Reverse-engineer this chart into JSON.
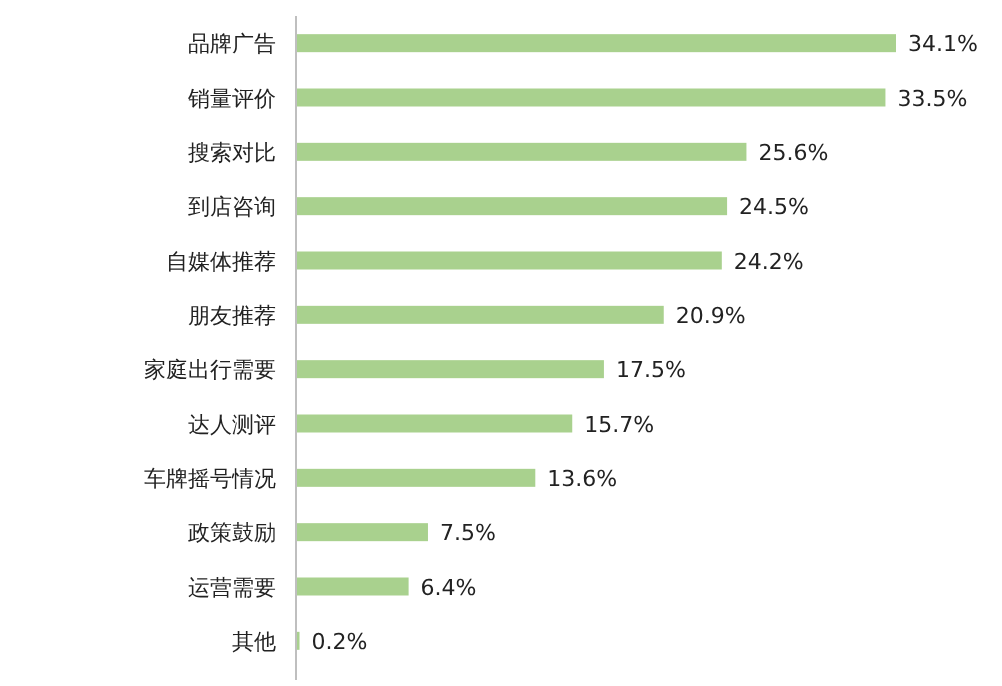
{
  "chart_data": {
    "type": "bar",
    "orientation": "horizontal",
    "categories": [
      "品牌广告",
      "销量评价",
      "搜索对比",
      "到店咨询",
      "自媒体推荐",
      "朋友推荐",
      "家庭出行需要",
      "达人测评",
      "车牌摇号情况",
      "政策鼓励",
      "运营需要",
      "其他"
    ],
    "values": [
      34.1,
      33.5,
      25.6,
      24.5,
      24.2,
      20.9,
      17.5,
      15.7,
      13.6,
      7.5,
      6.4,
      0.2
    ],
    "value_labels": [
      "34.1%",
      "33.5%",
      "25.6%",
      "24.5%",
      "24.2%",
      "20.9%",
      "17.5%",
      "15.7%",
      "13.6%",
      "7.5%",
      "6.4%",
      "0.2%"
    ],
    "color": "#a9d18e"
  }
}
